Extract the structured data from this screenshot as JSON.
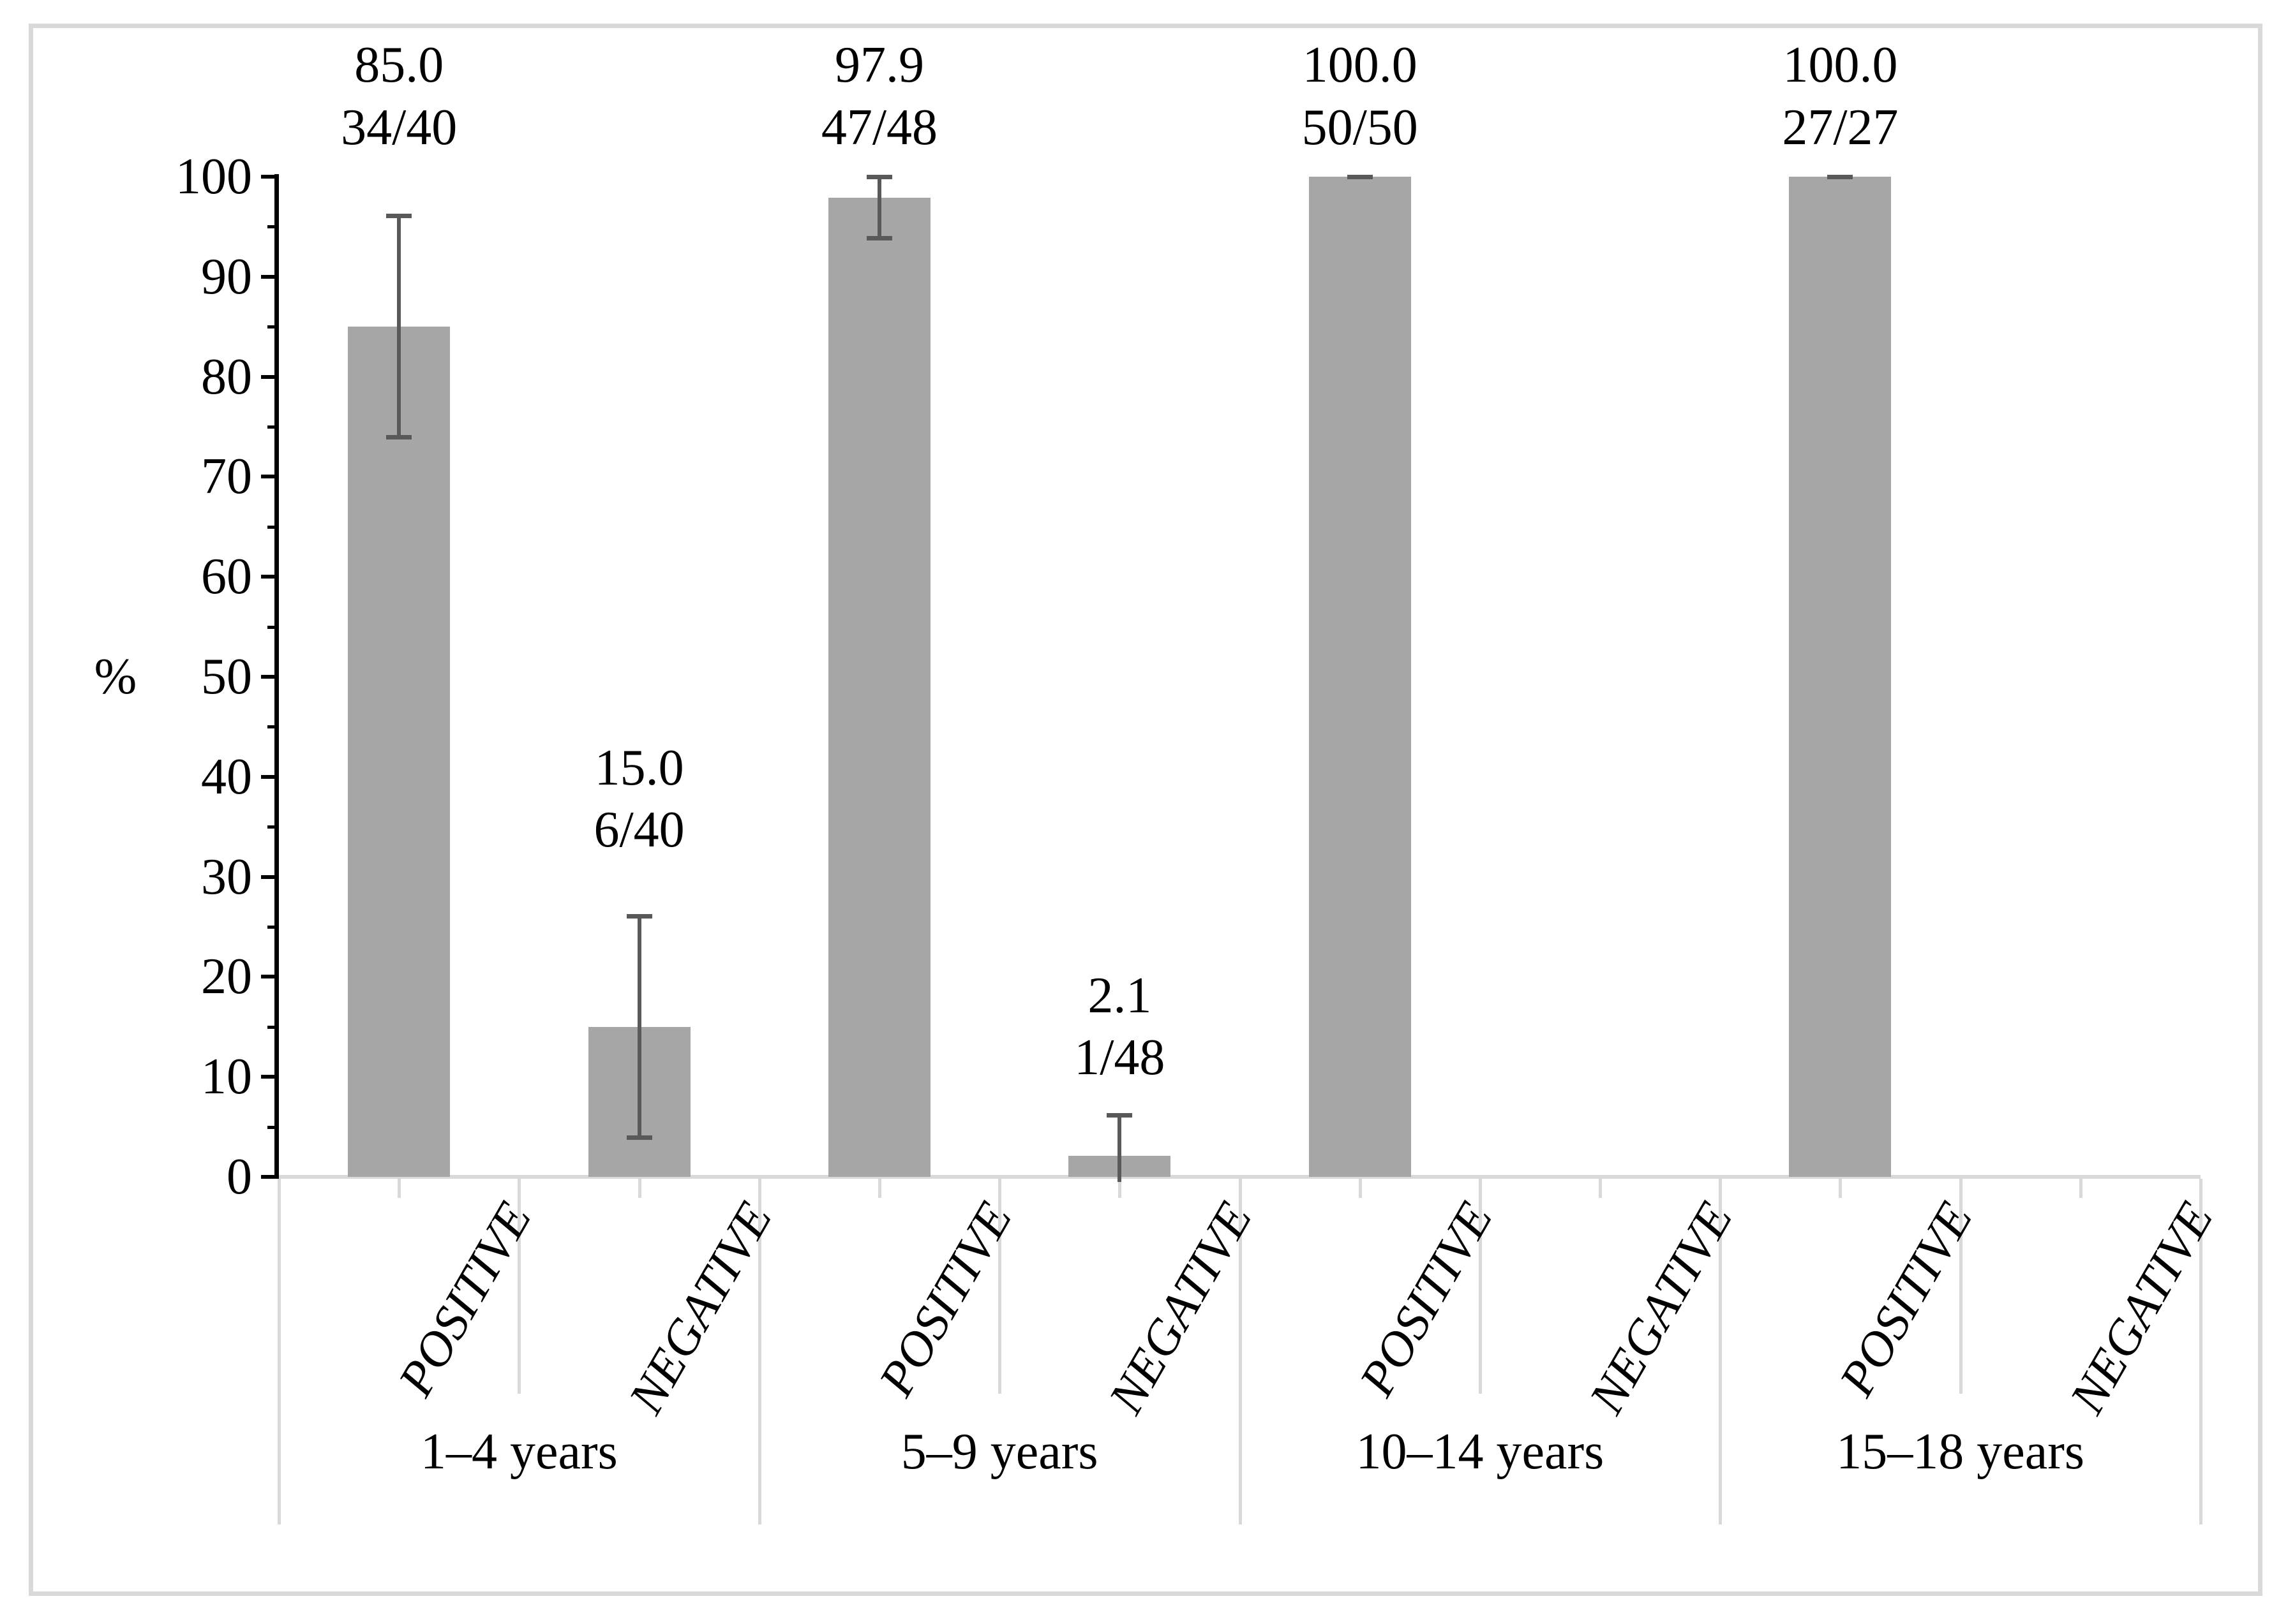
{
  "chart_data": {
    "type": "bar",
    "title": "",
    "ylabel": "%",
    "ylim": [
      0,
      100
    ],
    "ytick_step": 10,
    "yminor_step": 5,
    "ytick_labels": [
      "0",
      "10",
      "20",
      "30",
      "40",
      "50",
      "60",
      "70",
      "80",
      "90",
      "100"
    ],
    "grid": false,
    "legend": "none",
    "bar_color": "#a6a6a6",
    "error_bar_color": "#595959",
    "axis_color": "#000000",
    "separator_color": "#d9d9d9",
    "categories_per_group": [
      "POSITIVE",
      "NEGATIVE"
    ],
    "groups": [
      {
        "label": "1–4 years",
        "bars": [
          {
            "category": "POSITIVE",
            "value": 85.0,
            "value_label": "85.0",
            "fraction": "34/40",
            "err_low": 73.9,
            "err_high": 96.1
          },
          {
            "category": "NEGATIVE",
            "value": 15.0,
            "value_label": "15.0",
            "fraction": "6/40",
            "err_low": 3.9,
            "err_high": 26.1
          }
        ]
      },
      {
        "label": "5–9 years",
        "bars": [
          {
            "category": "POSITIVE",
            "value": 97.9,
            "value_label": "97.9",
            "fraction": "47/48",
            "err_low": 93.8,
            "err_high": 100
          },
          {
            "category": "NEGATIVE",
            "value": 2.1,
            "value_label": "2.1",
            "fraction": "1/48",
            "err_low": 0,
            "err_high": 6.2
          }
        ]
      },
      {
        "label": "10–14 years",
        "bars": [
          {
            "category": "POSITIVE",
            "value": 100.0,
            "value_label": "100.0",
            "fraction": "50/50",
            "err_low": 100,
            "err_high": 100
          },
          {
            "category": "NEGATIVE",
            "value": 0,
            "value_label": "",
            "fraction": "",
            "err_low": null,
            "err_high": null
          }
        ]
      },
      {
        "label": "15–18 years",
        "bars": [
          {
            "category": "POSITIVE",
            "value": 100.0,
            "value_label": "100.0",
            "fraction": "27/27",
            "err_low": 100,
            "err_high": 100
          },
          {
            "category": "NEGATIVE",
            "value": 0,
            "value_label": "",
            "fraction": "",
            "err_low": null,
            "err_high": null
          }
        ]
      }
    ]
  }
}
